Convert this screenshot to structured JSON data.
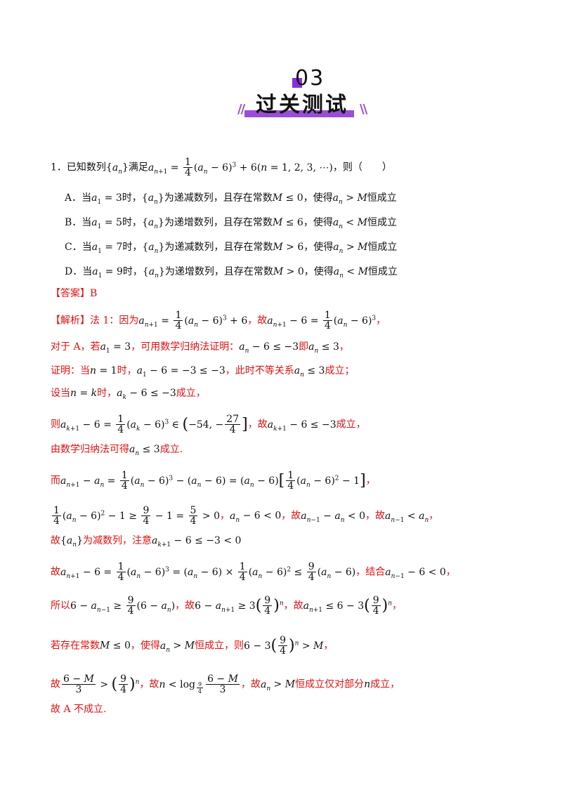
{
  "header": {
    "number": "03",
    "title": "过关测试"
  },
  "question": {
    "number": "1．",
    "stem_prefix": "已知数列",
    "stem_mid": "满足",
    "stem_end": "，则（　　）",
    "options": [
      {
        "label": "A．",
        "t1": "当",
        "t2": "时，",
        "t3": "为递减数列，且存在常数",
        "t4": "，使得",
        "t5": "恒成立"
      },
      {
        "label": "B．",
        "t1": "当",
        "t2": "时，",
        "t3": "为递增数列，且存在常数",
        "t4": "，使得",
        "t5": "恒成立"
      },
      {
        "label": "C．",
        "t1": "当",
        "t2": "时，",
        "t3": "为递减数列，且存在常数",
        "t4": "，使得",
        "t5": "恒成立"
      },
      {
        "label": "D．",
        "t1": "当",
        "t2": "时，",
        "t3": "为递增数列，且存在常数",
        "t4": "，使得",
        "t5": "恒成立"
      }
    ]
  },
  "answer": {
    "label": "【答案】",
    "value": "B"
  },
  "solution": {
    "label": "【解析】",
    "l1a": "法 1：因为",
    "l1b": "，故",
    "l2a": "对于 A，若",
    "l2b": "，可用数学归纳法证明：",
    "l2c": "即",
    "l3a": "证明：当",
    "l3b": "时，",
    "l3c": "，此时不等关系",
    "l3d": "成立；",
    "l4a": "设当",
    "l4b": "时，",
    "l4c": "成立，",
    "l5a": "则",
    "l5b": "，故",
    "l5c": "成立，",
    "l6a": "由数学归纳法可得",
    "l6b": "成立.",
    "l7a": "而",
    "l9a": "故",
    "l9b": "为减数列，注意",
    "l10a": "故",
    "l10b": "，结合",
    "l11a": "所以",
    "l11b": "，故",
    "l11c": "，故",
    "l12a": "若存在常数",
    "l12b": "，使得",
    "l12c": "恒成立，则",
    "l13a": "故",
    "l13b": "，故",
    "l13c": "，故",
    "l13d": "恒成立仅对部分",
    "l13e": "成立，",
    "l14": "故 A 不成立."
  }
}
